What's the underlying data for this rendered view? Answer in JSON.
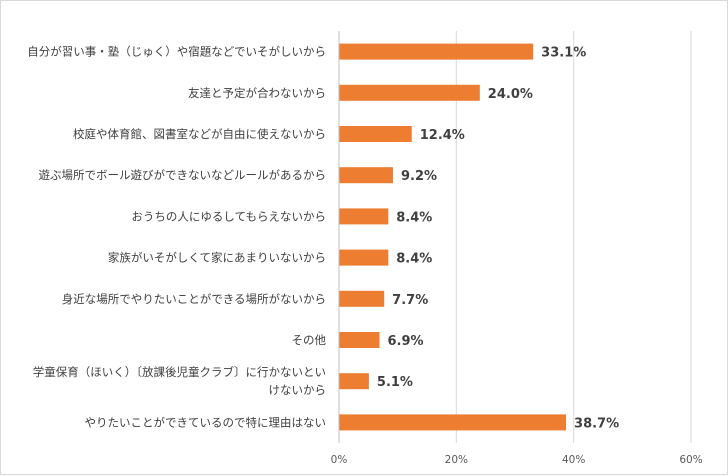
{
  "chart_data": {
    "type": "bar",
    "orientation": "horizontal",
    "categories": [
      [
        "自分が習い事・塾（じゅく）や宿題などでいそがしいから"
      ],
      [
        "友達と予定が合わないから"
      ],
      [
        "校庭や体育館、図書室などが自由に使えないから"
      ],
      [
        "遊ぶ場所でボール遊びができないなどルールがあるから"
      ],
      [
        "おうちの人にゆるしてもらえないから"
      ],
      [
        "家族がいそがしくて家にあまりいないから"
      ],
      [
        "身近な場所でやりたいことができる場所がないから"
      ],
      [
        "その他"
      ],
      [
        "学童保育（ほいく）〔放課後児童クラブ〕に行かないとい",
        "けないから"
      ],
      [
        "やりたいことができているので特に理由はない"
      ]
    ],
    "values": [
      33.1,
      24.0,
      12.4,
      9.2,
      8.4,
      8.4,
      7.7,
      6.9,
      5.1,
      38.7
    ],
    "data_labels": [
      "33.1%",
      "24.0%",
      "12.4%",
      "9.2%",
      "8.4%",
      "8.4%",
      "7.7%",
      "6.9%",
      "5.1%",
      "38.7%"
    ],
    "xlim": [
      0,
      60
    ],
    "xticks": [
      0,
      20,
      40,
      60
    ],
    "xtick_labels": [
      "0%",
      "20%",
      "40%",
      "60%"
    ],
    "grid": true,
    "bar_color": "#ed7d31",
    "grid_color": "#d9d9d9"
  }
}
